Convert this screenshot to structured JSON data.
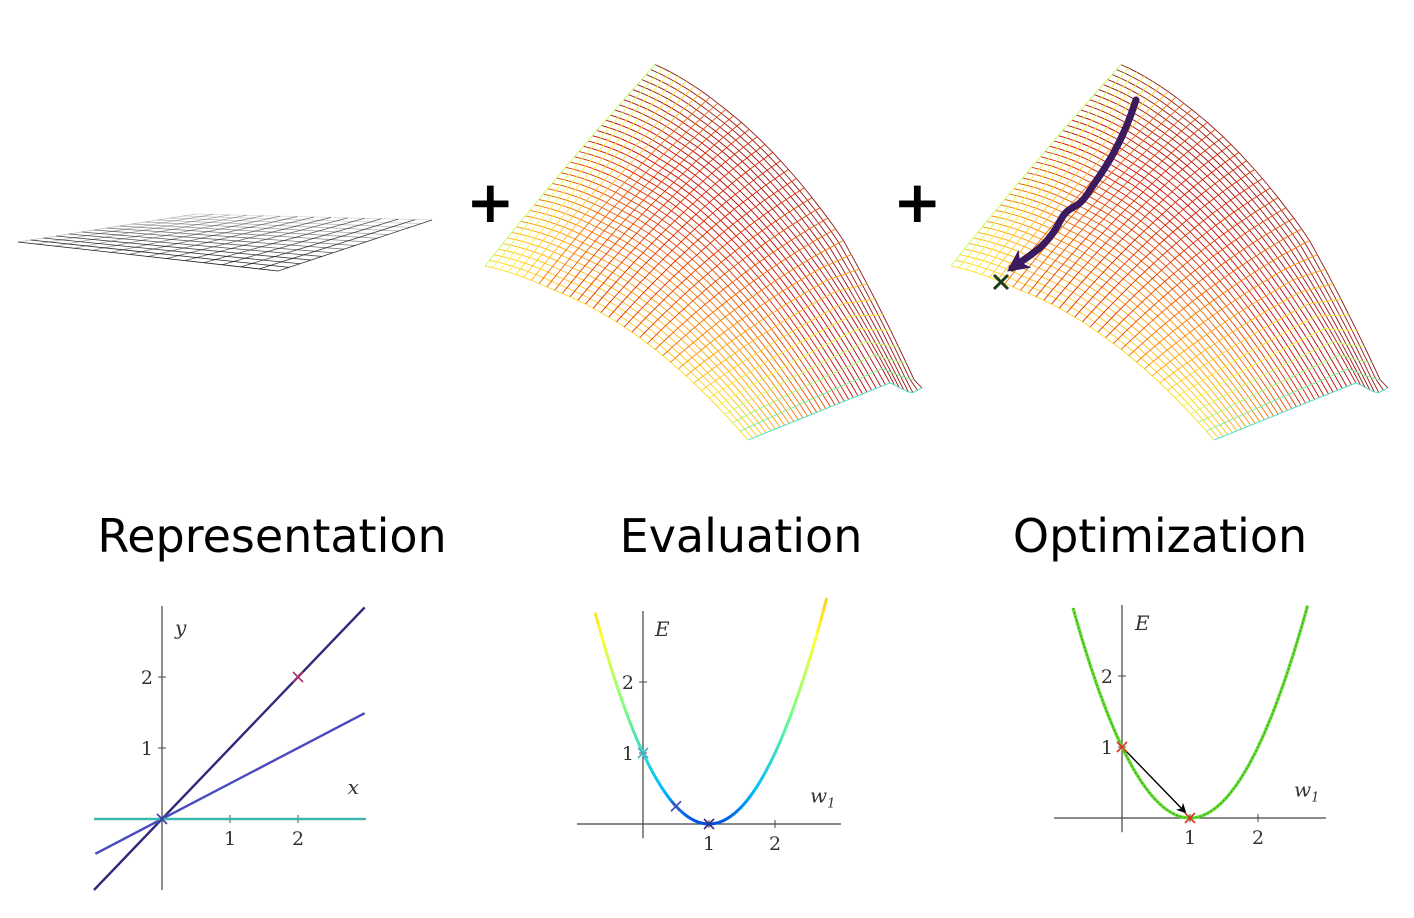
{
  "titles": {
    "representation": "Representation",
    "evaluation": "Evaluation",
    "optimization": "Optimization"
  },
  "plus_sign": "+",
  "icons": {
    "flat_surface": "flat-grid-surface-icon",
    "loss_surface": "saddle-loss-surface-icon",
    "descent_surface": "loss-surface-with-descent-path-icon"
  },
  "colors": {
    "flat_grid": "#000000",
    "surface_scale": [
      "#0000cc",
      "#00bfff",
      "#7fff7f",
      "#ffff33",
      "#ff8c00",
      "#cc0000",
      "#8b1a1a"
    ],
    "descent_path": "#3b1a5e",
    "rep_line_a": "#2d2a7a",
    "rep_line_b": "#4a4ac0",
    "rep_line_c": "#3cb8b0",
    "opt_curve": "#66dd33",
    "opt_marker": "#e03020"
  },
  "chart_data": [
    {
      "type": "line",
      "name": "representation",
      "xlabel": "x",
      "ylabel": "y",
      "xticks": [
        1,
        2
      ],
      "yticks": [
        1,
        2
      ],
      "xlim": [
        -1,
        3
      ],
      "ylim": [
        -1,
        3
      ],
      "lines": [
        {
          "slope": 1,
          "intercept": 0,
          "color": "#2d2a7a"
        },
        {
          "slope": 0.5,
          "intercept": 0,
          "color": "#4a4ac0"
        },
        {
          "slope": 0,
          "intercept": 0,
          "color": "#3cb8b0"
        }
      ],
      "markers": [
        {
          "x": 2,
          "y": 2,
          "color": "#b03070"
        },
        {
          "x": 0,
          "y": 0,
          "color": "#3b3ba0"
        }
      ]
    },
    {
      "type": "line",
      "name": "evaluation",
      "xlabel": "w₁",
      "ylabel": "E",
      "xticks": [
        1,
        2
      ],
      "yticks": [
        1,
        2
      ],
      "xlim": [
        -1,
        3
      ],
      "ylim": [
        -0.2,
        3
      ],
      "function": "(w-1)^2",
      "markers": [
        {
          "x": 0,
          "y": 1,
          "color": "#3fb0c8"
        },
        {
          "x": 0.5,
          "y": 0.25,
          "color": "#4a4ab0"
        },
        {
          "x": 1,
          "y": 0,
          "color": "#3a2a80"
        }
      ]
    },
    {
      "type": "line",
      "name": "optimization",
      "xlabel": "w₁",
      "ylabel": "E",
      "xticks": [
        1,
        2
      ],
      "yticks": [
        1,
        2
      ],
      "xlim": [
        -1,
        3
      ],
      "ylim": [
        -0.2,
        3
      ],
      "function": "(w-1)^2",
      "markers": [
        {
          "x": 0,
          "y": 1,
          "color": "#e03020"
        },
        {
          "x": 1,
          "y": 0,
          "color": "#e03020"
        }
      ],
      "arrow": {
        "from": [
          0,
          1
        ],
        "to": [
          1,
          0
        ]
      }
    }
  ]
}
